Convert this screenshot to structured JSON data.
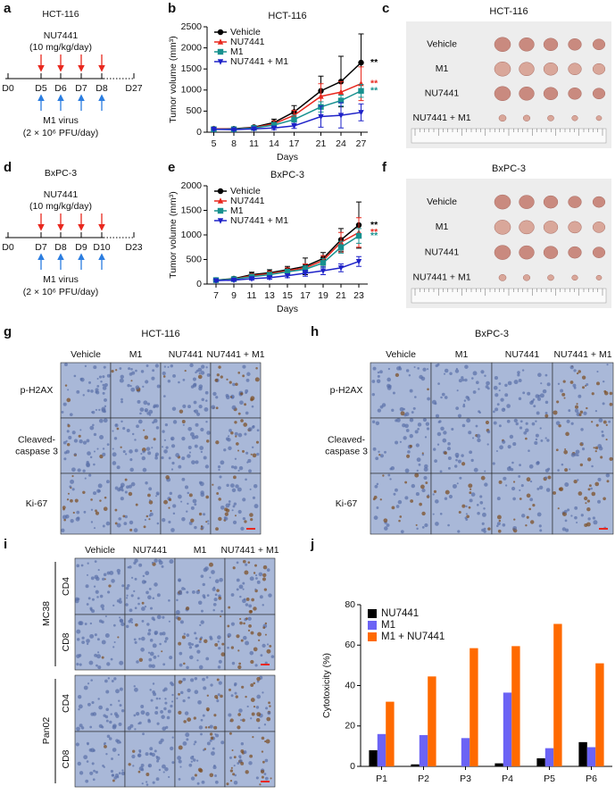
{
  "panel_labels": [
    "a",
    "b",
    "c",
    "d",
    "e",
    "f",
    "g",
    "h",
    "i",
    "j"
  ],
  "schematics": [
    {
      "title": "HCT-116",
      "drug": "NU7441",
      "dose": "(10 mg/kg/day)",
      "days": [
        "D0",
        "D5",
        "D6",
        "D7",
        "D8",
        "D27"
      ],
      "virus": "M1 virus",
      "virus_dose": "(2 × 10⁶ PFU/day)"
    },
    {
      "title": "BxPC-3",
      "drug": "NU7441",
      "dose": "(10 mg/kg/day)",
      "days": [
        "D0",
        "D7",
        "D8",
        "D9",
        "D10",
        "D23"
      ],
      "virus": "M1 virus",
      "virus_dose": "(2 × 10⁶ PFU/day)"
    }
  ],
  "photos": [
    {
      "title": "HCT-116",
      "rows": [
        "Vehicle",
        "M1",
        "NU7441",
        "NU7441 + M1"
      ]
    },
    {
      "title": "BxPC-3",
      "rows": [
        "Vehicle",
        "M1",
        "NU7441",
        "NU7441 + M1"
      ]
    }
  ],
  "ihc": [
    {
      "title": "HCT-116",
      "columns": [
        "Vehicle",
        "M1",
        "NU7441",
        "NU7441 + M1"
      ],
      "rows": [
        [
          "p-H2AX"
        ],
        [
          "Cleaved-",
          "caspase 3"
        ],
        [
          "Ki-67"
        ]
      ]
    },
    {
      "title": "BxPC-3",
      "columns": [
        "Vehicle",
        "M1",
        "NU7441",
        "NU7441 + M1"
      ],
      "rows": [
        [
          "p-H2AX"
        ],
        [
          "Cleaved-",
          "caspase 3"
        ],
        [
          "Ki-67"
        ]
      ]
    },
    {
      "columns": [
        "Vehicle",
        "NU7441",
        "M1",
        "NU7441 + M1"
      ],
      "groups": [
        {
          "name": "MC38",
          "rows": [
            "CD4",
            "CD8"
          ]
        },
        {
          "name": "Pan02",
          "rows": [
            "CD4",
            "CD8"
          ]
        }
      ]
    }
  ],
  "chart_data": [
    {
      "type": "line",
      "title": "HCT-116",
      "x_label": "Days",
      "y_label": "Tumor volume (mm³)",
      "x": [
        5,
        8,
        11,
        14,
        17,
        21,
        24,
        27
      ],
      "xlim": [
        4,
        28
      ],
      "xticks": [
        5,
        8,
        11,
        14,
        17,
        21,
        24,
        27
      ],
      "ylim": [
        0,
        2500
      ],
      "yticks": [
        0,
        500,
        1000,
        1500,
        2000,
        2500
      ],
      "series": [
        {
          "name": "Vehicle",
          "color": "#000000",
          "marker": "circle",
          "values": [
            80,
            80,
            120,
            230,
            480,
            980,
            1200,
            1650
          ],
          "errors": [
            20,
            20,
            40,
            80,
            150,
            350,
            600,
            680
          ],
          "significance": "**"
        },
        {
          "name": "NU7441",
          "color": "#e8281e",
          "marker": "triangle",
          "values": [
            80,
            70,
            110,
            200,
            400,
            850,
            950,
            1150
          ],
          "errors": [
            20,
            20,
            35,
            70,
            120,
            300,
            250,
            400
          ],
          "significance": "**"
        },
        {
          "name": "M1",
          "color": "#17918f",
          "marker": "square",
          "values": [
            70,
            70,
            100,
            170,
            300,
            600,
            750,
            980
          ],
          "errors": [
            20,
            20,
            30,
            60,
            100,
            120,
            130,
            150
          ],
          "significance": "**"
        },
        {
          "name": "NU7441 + M1",
          "color": "#1e22c8",
          "marker": "triangle-down",
          "values": [
            70,
            60,
            80,
            100,
            150,
            370,
            400,
            470
          ],
          "errors": [
            20,
            20,
            30,
            40,
            60,
            250,
            300,
            200
          ]
        }
      ]
    },
    {
      "type": "line",
      "title": "BxPC-3",
      "x_label": "Days",
      "y_label": "Tumor volume (mm³)",
      "x": [
        7,
        9,
        11,
        13,
        15,
        17,
        19,
        21,
        23
      ],
      "xlim": [
        6,
        24
      ],
      "xticks": [
        7,
        9,
        11,
        13,
        15,
        17,
        19,
        21,
        23
      ],
      "ylim": [
        0,
        2000
      ],
      "yticks": [
        0,
        500,
        1000,
        1500,
        2000
      ],
      "series": [
        {
          "name": "Vehicle",
          "color": "#000000",
          "marker": "circle",
          "values": [
            80,
            110,
            190,
            230,
            290,
            360,
            520,
            900,
            1200
          ],
          "errors": [
            20,
            30,
            50,
            60,
            70,
            170,
            120,
            230,
            470
          ],
          "significance": "**"
        },
        {
          "name": "NU7441",
          "color": "#e8281e",
          "marker": "triangle",
          "values": [
            80,
            100,
            170,
            210,
            270,
            330,
            480,
            850,
            1050
          ],
          "errors": [
            20,
            30,
            40,
            50,
            60,
            80,
            100,
            200,
            300
          ],
          "significance": "**"
        },
        {
          "name": "M1",
          "color": "#17918f",
          "marker": "square",
          "values": [
            80,
            100,
            150,
            190,
            250,
            300,
            430,
            750,
            980
          ],
          "errors": [
            20,
            25,
            30,
            40,
            50,
            70,
            90,
            120,
            150
          ],
          "significance": "**"
        },
        {
          "name": "NU7441 + M1",
          "color": "#1e22c8",
          "marker": "triangle-down",
          "values": [
            70,
            80,
            110,
            130,
            170,
            220,
            270,
            330,
            460
          ],
          "errors": [
            20,
            20,
            30,
            30,
            40,
            60,
            80,
            80,
            100
          ]
        }
      ]
    },
    {
      "type": "bar",
      "y_label": "Cytotoxicity (%)",
      "categories": [
        "P1",
        "P2",
        "P3",
        "P4",
        "P5",
        "P6"
      ],
      "ylim": [
        0,
        80
      ],
      "yticks": [
        0,
        20,
        40,
        60,
        80
      ],
      "series": [
        {
          "name": "NU7441",
          "color": "#000000",
          "values": [
            8,
            1,
            0,
            1.5,
            4,
            12
          ]
        },
        {
          "name": "M1",
          "color": "#6b63f5",
          "values": [
            16,
            15.5,
            14,
            36.5,
            9,
            9.5
          ]
        },
        {
          "name": "M1 + NU7441",
          "color": "#ff6a00",
          "values": [
            32,
            44.5,
            58.5,
            59.5,
            70.5,
            51
          ]
        }
      ]
    }
  ]
}
